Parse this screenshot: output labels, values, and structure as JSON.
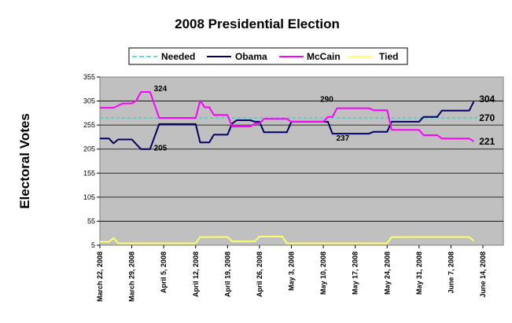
{
  "chart_data": {
    "type": "line",
    "title": "2008 Presidential Election",
    "ylabel": "Electoral Votes",
    "xlabel": "",
    "ylim": [
      5,
      355
    ],
    "yticks": [
      5,
      55,
      105,
      155,
      205,
      255,
      305,
      355
    ],
    "x_tick_labels": [
      "March 22, 2008",
      "March 29, 2008",
      "April 5, 2008",
      "April 12, 2008",
      "April 19, 2008",
      "April 26, 2008",
      "May 3, 2008",
      "May 10, 2008",
      "May 17, 2008",
      "May 24, 2008",
      "May 31, 2008",
      "June 7, 2008",
      "June 14, 2008"
    ],
    "x_range": [
      0,
      84
    ],
    "grid": true,
    "legend_position": "top",
    "series": [
      {
        "name": "Needed",
        "color": "#33cccc",
        "dashed": true,
        "points": [
          [
            0,
            270
          ],
          [
            84,
            270
          ]
        ]
      },
      {
        "name": "Obama",
        "color": "#000066",
        "dashed": false,
        "points": [
          [
            0,
            227
          ],
          [
            2,
            227
          ],
          [
            3,
            217
          ],
          [
            4,
            225
          ],
          [
            7,
            225
          ],
          [
            9,
            205
          ],
          [
            11,
            205
          ],
          [
            13,
            257
          ],
          [
            21,
            257
          ],
          [
            22,
            219
          ],
          [
            24,
            219
          ],
          [
            25,
            235
          ],
          [
            28,
            235
          ],
          [
            29,
            258
          ],
          [
            30,
            265
          ],
          [
            33,
            265
          ],
          [
            34,
            262
          ],
          [
            35,
            262
          ],
          [
            36,
            240
          ],
          [
            41,
            240
          ],
          [
            42,
            262
          ],
          [
            50,
            262
          ],
          [
            51,
            237
          ],
          [
            59,
            237
          ],
          [
            60,
            241
          ],
          [
            63,
            241
          ],
          [
            64,
            262
          ],
          [
            70,
            262
          ],
          [
            71,
            272
          ],
          [
            74,
            272
          ],
          [
            75,
            285
          ],
          [
            81,
            285
          ],
          [
            82,
            304
          ]
        ]
      },
      {
        "name": "McCain",
        "color": "#ff00ff",
        "dashed": false,
        "points": [
          [
            0,
            291
          ],
          [
            3,
            291
          ],
          [
            5,
            300
          ],
          [
            7,
            300
          ],
          [
            8,
            306
          ],
          [
            9,
            324
          ],
          [
            11,
            324
          ],
          [
            13,
            270
          ],
          [
            21,
            270
          ],
          [
            22,
            306
          ],
          [
            23,
            292
          ],
          [
            24,
            292
          ],
          [
            25,
            276
          ],
          [
            28,
            276
          ],
          [
            29,
            252
          ],
          [
            33,
            252
          ],
          [
            34,
            258
          ],
          [
            35,
            258
          ],
          [
            36,
            268
          ],
          [
            41,
            268
          ],
          [
            42,
            262
          ],
          [
            49,
            262
          ],
          [
            50,
            272
          ],
          [
            51,
            272
          ],
          [
            52,
            290
          ],
          [
            59,
            290
          ],
          [
            60,
            286
          ],
          [
            63,
            286
          ],
          [
            64,
            245
          ],
          [
            70,
            245
          ],
          [
            71,
            234
          ],
          [
            74,
            234
          ],
          [
            75,
            227
          ],
          [
            81,
            227
          ],
          [
            82,
            221
          ]
        ]
      },
      {
        "name": "Tied",
        "color": "#ffff66",
        "dashed": false,
        "points": [
          [
            0,
            12
          ],
          [
            2,
            12
          ],
          [
            3,
            20
          ],
          [
            4,
            9
          ],
          [
            21,
            9
          ],
          [
            22,
            22
          ],
          [
            28,
            22
          ],
          [
            29,
            13
          ],
          [
            34,
            13
          ],
          [
            35,
            23
          ],
          [
            40,
            23
          ],
          [
            41,
            9
          ],
          [
            63,
            9
          ],
          [
            64,
            22
          ],
          [
            81,
            22
          ],
          [
            82,
            14
          ]
        ]
      }
    ],
    "annotations": [
      {
        "text": "324",
        "x": 12,
        "y": 324
      },
      {
        "text": "205",
        "x": 12,
        "y": 205
      },
      {
        "text": "290",
        "x": 49,
        "y": 290
      },
      {
        "text": "237",
        "x": 52,
        "y": 237
      },
      {
        "text": "304",
        "x": 83,
        "y": 304
      },
      {
        "text": "270",
        "x": 83,
        "y": 270
      },
      {
        "text": "221",
        "x": 83,
        "y": 221
      }
    ]
  }
}
